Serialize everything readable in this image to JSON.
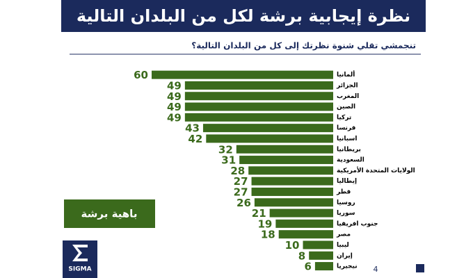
{
  "chart_data": {
    "type": "bar",
    "orientation": "horizontal",
    "direction": "rtl",
    "title": "نظرة إيجابية برشة لكل من البلدان التالية",
    "subtitle": "تنجمشي تقلي شنوة نظرتك إلى كل من البلدان التالية؟",
    "categories": [
      "ألمانيا",
      "الجزائر",
      "المغرب",
      "الصين",
      "تركيا",
      "فرنسا",
      "اسبانيا",
      "بريطانيا",
      "السعودية",
      "الولايات المتحدة الأمريكية",
      "إيطاليا",
      "قطر",
      "روسيا",
      "سوريا",
      "جنوب افريقيا",
      "مصر",
      "ليبيا",
      "إيران",
      "نيجيريا"
    ],
    "series": [
      {
        "name": "باهية برشة",
        "color": "#3b6a1c",
        "values": [
          60,
          49,
          49,
          49,
          49,
          43,
          42,
          32,
          31,
          28,
          27,
          27,
          26,
          21,
          19,
          18,
          10,
          8,
          6
        ]
      }
    ],
    "xlim": [
      0,
      60
    ],
    "logo": "SIGMA",
    "page_number": "4"
  }
}
